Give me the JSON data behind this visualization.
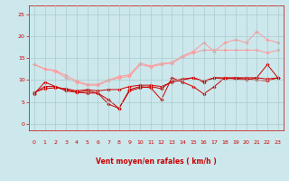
{
  "bg_color": "#cce8ec",
  "grid_color": "#aacccc",
  "line_color_dark": "#cc0000",
  "line_color_light": "#ff9999",
  "xlabel": "Vent moyen/en rafales ( km/h )",
  "xlim": [
    -0.5,
    23.5
  ],
  "ylim": [
    -1.5,
    27
  ],
  "yticks": [
    0,
    5,
    10,
    15,
    20,
    25
  ],
  "xticks": [
    0,
    1,
    2,
    3,
    4,
    5,
    6,
    7,
    8,
    9,
    10,
    11,
    12,
    13,
    14,
    15,
    16,
    17,
    18,
    19,
    20,
    21,
    22,
    23
  ],
  "x_vals": [
    0,
    1,
    2,
    3,
    4,
    5,
    6,
    7,
    8,
    9,
    10,
    11,
    12,
    13,
    14,
    15,
    16,
    17,
    18,
    19,
    20,
    21,
    22,
    23
  ],
  "lines_light": [
    [
      13.5,
      12.5,
      12.0,
      10.5,
      9.5,
      8.8,
      8.8,
      9.8,
      10.5,
      10.8,
      13.5,
      13.0,
      13.5,
      14.0,
      15.5,
      16.5,
      18.5,
      16.5,
      18.5,
      19.2,
      18.5,
      21.0,
      19.2,
      18.5
    ],
    [
      13.5,
      12.5,
      12.2,
      11.0,
      9.8,
      9.0,
      9.0,
      10.0,
      10.8,
      11.2,
      13.8,
      13.2,
      13.8,
      13.8,
      15.2,
      16.2,
      16.8,
      16.8,
      16.8,
      16.8,
      16.8,
      16.8,
      16.2,
      16.8
    ]
  ],
  "lines_dark": [
    [
      6.8,
      9.5,
      8.5,
      7.8,
      7.2,
      7.5,
      7.0,
      4.5,
      3.5,
      7.8,
      8.5,
      8.2,
      5.5,
      10.5,
      9.5,
      8.5,
      6.8,
      8.5,
      10.5,
      10.2,
      10.0,
      10.5,
      13.5,
      10.5
    ],
    [
      7.0,
      8.5,
      8.5,
      7.5,
      7.2,
      7.0,
      7.0,
      5.5,
      3.5,
      7.5,
      8.2,
      8.5,
      8.0,
      9.8,
      10.2,
      10.5,
      9.5,
      10.5,
      10.2,
      10.5,
      10.2,
      10.0,
      9.8,
      10.5
    ],
    [
      7.2,
      8.0,
      8.2,
      8.0,
      7.5,
      7.8,
      7.5,
      7.8,
      7.8,
      8.5,
      8.8,
      8.8,
      8.5,
      9.5,
      10.0,
      10.5,
      9.8,
      10.5,
      10.5,
      10.5,
      10.5,
      10.5,
      10.2,
      10.5
    ]
  ],
  "arrows": [
    "↗",
    "↗",
    "↗",
    "↗",
    "↗",
    "↑",
    "↑",
    "↖",
    "↑",
    "↗",
    "↑",
    "↑",
    "↑",
    "↖",
    "↖",
    "↑",
    "↑",
    "↗",
    "↑",
    "↗",
    "↑",
    "↑",
    "↑",
    "↑"
  ]
}
